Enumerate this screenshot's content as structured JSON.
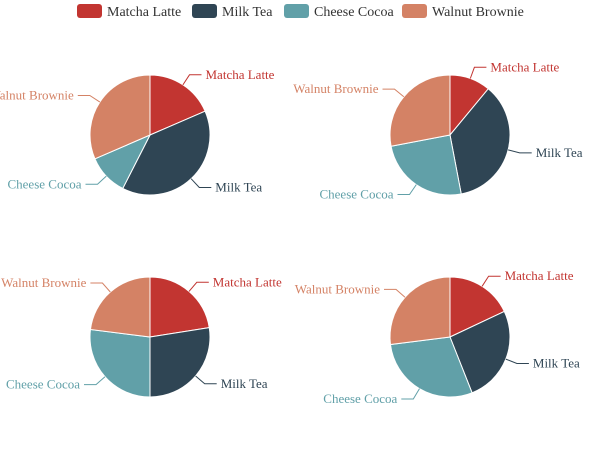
{
  "chart_data": {
    "type": "pie",
    "legend": {
      "placement": "top-center",
      "items": [
        {
          "name": "Matcha Latte",
          "color": "#c23531"
        },
        {
          "name": "Milk Tea",
          "color": "#2f4554"
        },
        {
          "name": "Cheese Cocoa",
          "color": "#61a0a8"
        },
        {
          "name": "Walnut Brownie",
          "color": "#d48265"
        }
      ]
    },
    "charts": [
      {
        "categories": [
          "Matcha Latte",
          "Milk Tea",
          "Cheese Cocoa",
          "Walnut Brownie"
        ],
        "values": [
          18.5,
          39,
          11,
          31.5
        ]
      },
      {
        "categories": [
          "Matcha Latte",
          "Milk Tea",
          "Cheese Cocoa",
          "Walnut Brownie"
        ],
        "values": [
          11,
          36,
          25,
          28
        ]
      },
      {
        "categories": [
          "Matcha Latte",
          "Milk Tea",
          "Cheese Cocoa",
          "Walnut Brownie"
        ],
        "values": [
          22.5,
          27.5,
          27,
          23
        ]
      },
      {
        "categories": [
          "Matcha Latte",
          "Milk Tea",
          "Cheese Cocoa",
          "Walnut Brownie"
        ],
        "values": [
          18,
          26,
          29,
          27
        ]
      }
    ]
  }
}
